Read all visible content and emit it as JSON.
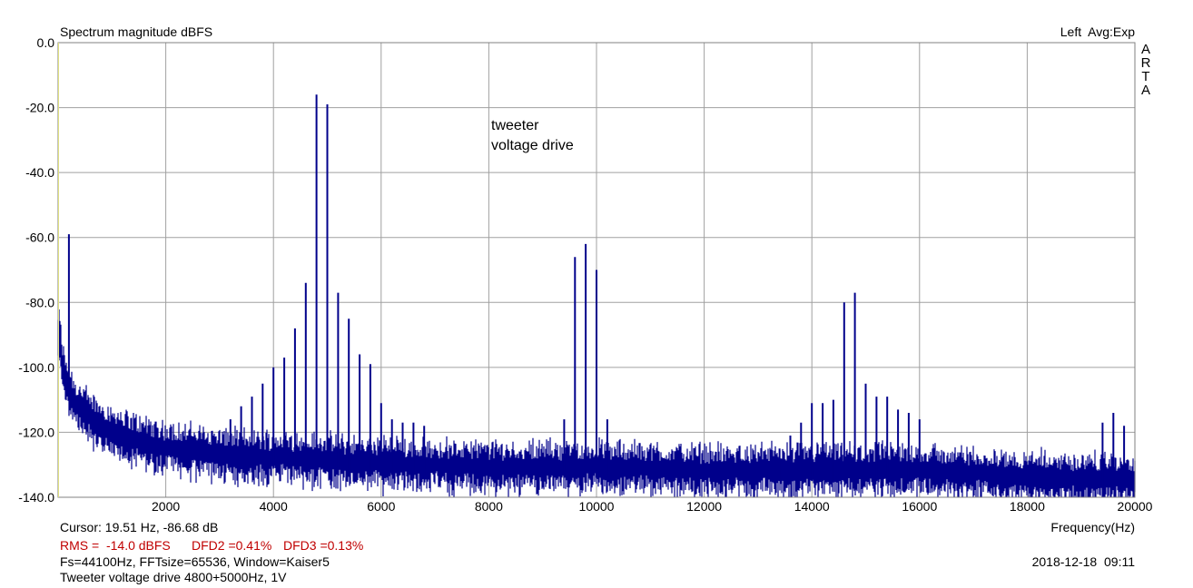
{
  "header": {
    "title": "Spectrum magnitude dBFS",
    "channel_label": "Left  Avg:Exp",
    "brand_letters": [
      "A",
      "R",
      "T",
      "A"
    ]
  },
  "annotation": {
    "line1": "tweeter",
    "line2": "voltage drive"
  },
  "footer": {
    "cursor": "Cursor: 19.51 Hz, -86.68 dB",
    "xlabel": "Frequency(Hz)",
    "rms": "RMS =  -14.0 dBFS",
    "dfd2": "DFD2 =0.41%",
    "dfd3": "DFD3 =0.13%",
    "params": "Fs=44100Hz, FFTsize=65536, Window=Kaiser5",
    "datetime": "2018-12-18  09:11",
    "description": "Tweeter voltage drive 4800+5000Hz, 1V"
  },
  "colors": {
    "trace": "#00008b",
    "grid": "#a0a0a0",
    "frame": "#808080",
    "red_text": "#c00000"
  },
  "chart_data": {
    "type": "line",
    "title": "Spectrum magnitude dBFS",
    "xlabel": "Frequency(Hz)",
    "ylabel": "",
    "xlim": [
      0,
      20000
    ],
    "ylim": [
      -140,
      0
    ],
    "x_ticks": [
      2000,
      4000,
      6000,
      8000,
      10000,
      12000,
      14000,
      16000,
      18000,
      20000
    ],
    "x_tick_labels": [
      "2000",
      "4000",
      "6000",
      "8000",
      "10000",
      "12000",
      "14000",
      "16000",
      "18000",
      "20000"
    ],
    "y_ticks": [
      0,
      -20,
      -40,
      -60,
      -80,
      -100,
      -120,
      -140
    ],
    "y_tick_labels": [
      "0.0",
      "-20.0",
      "-40.0",
      "-60.0",
      "-80.0",
      "-100.0",
      "-120.0",
      "-140.0"
    ],
    "grid": true,
    "noise_floor": [
      [
        20,
        -89
      ],
      [
        100,
        -101
      ],
      [
        300,
        -110
      ],
      [
        600,
        -115
      ],
      [
        1000,
        -119
      ],
      [
        1500,
        -122
      ],
      [
        2000,
        -124
      ],
      [
        3000,
        -126
      ],
      [
        4000,
        -127
      ],
      [
        5000,
        -128
      ],
      [
        6000,
        -129
      ],
      [
        8000,
        -130
      ],
      [
        10000,
        -130
      ],
      [
        12000,
        -131
      ],
      [
        14000,
        -131
      ],
      [
        16000,
        -131
      ],
      [
        18000,
        -133
      ],
      [
        20000,
        -134
      ]
    ],
    "series": [
      {
        "values": [
          [
            200,
            -59
          ],
          [
            3200,
            -116
          ],
          [
            3400,
            -112
          ],
          [
            3600,
            -109
          ],
          [
            3800,
            -105
          ],
          [
            4000,
            -100
          ],
          [
            4200,
            -97
          ],
          [
            4400,
            -88
          ],
          [
            4600,
            -74
          ],
          [
            4800,
            -16
          ],
          [
            5000,
            -19
          ],
          [
            5200,
            -77
          ],
          [
            5400,
            -85
          ],
          [
            5600,
            -96
          ],
          [
            5800,
            -99
          ],
          [
            6000,
            -111
          ],
          [
            6200,
            -116
          ],
          [
            6400,
            -117
          ],
          [
            6600,
            -117
          ],
          [
            6800,
            -118
          ],
          [
            9400,
            -116
          ],
          [
            9600,
            -66
          ],
          [
            9800,
            -62
          ],
          [
            10000,
            -70
          ],
          [
            10200,
            -116
          ],
          [
            13400,
            -125
          ],
          [
            13600,
            -121
          ],
          [
            13800,
            -117
          ],
          [
            14000,
            -111
          ],
          [
            14200,
            -111
          ],
          [
            14400,
            -110
          ],
          [
            14600,
            -80
          ],
          [
            14800,
            -77
          ],
          [
            15000,
            -105
          ],
          [
            15200,
            -109
          ],
          [
            15400,
            -109
          ],
          [
            15600,
            -113
          ],
          [
            15800,
            -114
          ],
          [
            16000,
            -116
          ],
          [
            19400,
            -117
          ],
          [
            19600,
            -114
          ],
          [
            19800,
            -118
          ]
        ]
      }
    ]
  }
}
